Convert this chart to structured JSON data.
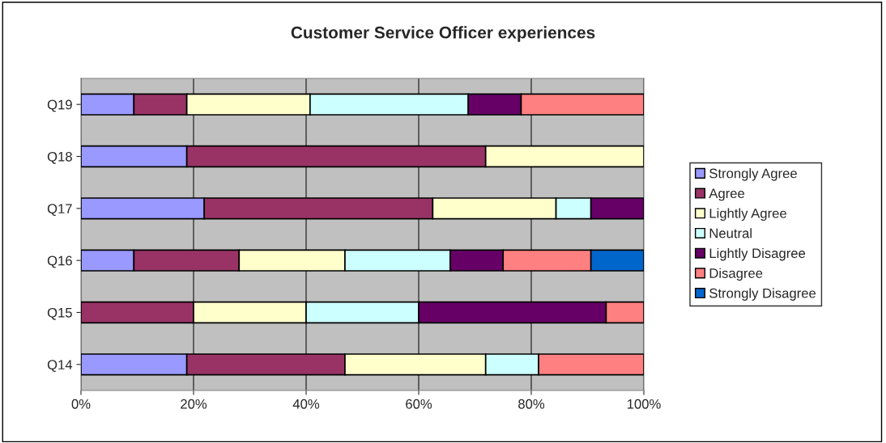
{
  "chart_data": {
    "type": "bar",
    "orientation": "horizontal",
    "stacked": true,
    "title": "Customer Service Officer experiences",
    "categories": [
      "Q19",
      "Q18",
      "Q17",
      "Q16",
      "Q15",
      "Q14"
    ],
    "series": [
      {
        "name": "Strongly Agree",
        "color": "#9999ff",
        "values": [
          9.4,
          18.8,
          21.9,
          9.4,
          null,
          18.8
        ]
      },
      {
        "name": "Agree",
        "color": "#993366",
        "values": [
          9.4,
          53.1,
          40.6,
          18.7,
          20,
          28.1
        ]
      },
      {
        "name": "Lightly Agree",
        "color": "#ffffcc",
        "values": [
          21.9,
          28.1,
          21.9,
          18.8,
          20,
          25
        ]
      },
      {
        "name": "Neutral",
        "color": "#ccffff",
        "values": [
          28.1,
          null,
          6.2,
          18.7,
          20,
          9.4
        ]
      },
      {
        "name": "Lightly Disagree",
        "color": "#660066",
        "values": [
          9.4,
          null,
          9.4,
          9.4,
          33.3,
          null
        ]
      },
      {
        "name": "Disagree",
        "color": "#ff8080",
        "values": [
          21.8,
          null,
          null,
          15.6,
          6.7,
          18.7
        ]
      },
      {
        "name": "Strongly Disagree",
        "color": "#0066cc",
        "values": [
          null,
          null,
          null,
          9.4,
          null,
          null
        ]
      }
    ],
    "xlim": [
      0,
      100
    ],
    "xticks": [
      {
        "value": 0,
        "label": "0%"
      },
      {
        "value": 20,
        "label": "20%"
      },
      {
        "value": 40,
        "label": "40%"
      },
      {
        "value": 60,
        "label": "60%"
      },
      {
        "value": 80,
        "label": "80%"
      },
      {
        "value": 100,
        "label": "100%"
      }
    ],
    "grid": "x",
    "legend": "right"
  }
}
